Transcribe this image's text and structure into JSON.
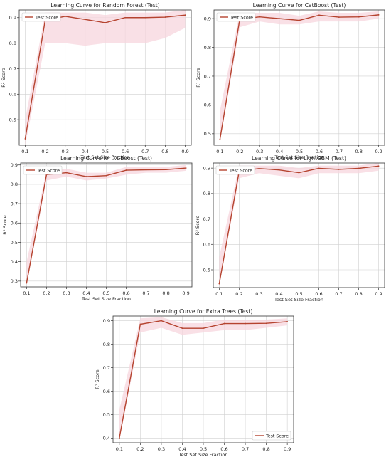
{
  "colors": {
    "line": "#b5432f",
    "band": "#f7d6de",
    "grid": "#d0d0d0",
    "axis": "#333333"
  },
  "chart_data": [
    {
      "type": "line",
      "title": "Learning Curve for Random Forest (Test)",
      "xlabel": "Test Set Size Fraction",
      "ylabel": "R² Score",
      "xlim": [
        0.07,
        0.93
      ],
      "ylim": [
        0.4,
        0.93
      ],
      "xticks": [
        "0.1",
        "0.2",
        "0.3",
        "0.4",
        "0.5",
        "0.6",
        "0.7",
        "0.8",
        "0.9"
      ],
      "yticks": [
        "0.5",
        "0.6",
        "0.7",
        "0.8",
        "0.9"
      ],
      "grid": true,
      "legend": "upper left",
      "series": [
        {
          "name": "Test Score",
          "x": [
            0.1,
            0.2,
            0.3,
            0.4,
            0.5,
            0.6,
            0.7,
            0.8,
            0.9
          ],
          "y": [
            0.425,
            0.89,
            0.905,
            0.893,
            0.88,
            0.9,
            0.9,
            0.902,
            0.91
          ],
          "lower": [
            0.4,
            0.8,
            0.8,
            0.79,
            0.8,
            0.8,
            0.8,
            0.82,
            0.86
          ],
          "upper": [
            0.5,
            0.92,
            0.92,
            0.92,
            0.91,
            0.92,
            0.92,
            0.92,
            0.93
          ]
        }
      ]
    },
    {
      "type": "line",
      "title": "Learning Curve for CatBoost (Test)",
      "xlabel": "Test Set Size Fraction",
      "ylabel": "R² Score",
      "xlim": [
        0.07,
        0.93
      ],
      "ylim": [
        0.46,
        0.93
      ],
      "xticks": [
        "0.1",
        "0.2",
        "0.3",
        "0.4",
        "0.5",
        "0.6",
        "0.7",
        "0.8",
        "0.9"
      ],
      "yticks": [
        "0.5",
        "0.6",
        "0.7",
        "0.8",
        "0.9"
      ],
      "grid": true,
      "legend": "upper left",
      "series": [
        {
          "name": "Test Score",
          "x": [
            0.1,
            0.2,
            0.3,
            0.4,
            0.5,
            0.6,
            0.7,
            0.8,
            0.9
          ],
          "y": [
            0.48,
            0.898,
            0.906,
            0.9,
            0.894,
            0.912,
            0.905,
            0.906,
            0.913
          ],
          "lower": [
            0.47,
            0.87,
            0.89,
            0.88,
            0.88,
            0.89,
            0.89,
            0.89,
            0.9
          ],
          "upper": [
            0.58,
            0.92,
            0.92,
            0.92,
            0.91,
            0.925,
            0.92,
            0.92,
            0.925
          ]
        }
      ]
    },
    {
      "type": "line",
      "title": "Learning Curve for XGBoost (Test)",
      "xlabel": "Test Set Size Fraction",
      "ylabel": "R² Score",
      "xlim": [
        0.07,
        0.93
      ],
      "ylim": [
        0.27,
        0.91
      ],
      "xticks": [
        "0.1",
        "0.2",
        "0.3",
        "0.4",
        "0.5",
        "0.6",
        "0.7",
        "0.8",
        "0.9"
      ],
      "yticks": [
        "0.3",
        "0.4",
        "0.5",
        "0.6",
        "0.7",
        "0.8",
        "0.9"
      ],
      "grid": true,
      "legend": "upper left",
      "series": [
        {
          "name": "Test Score",
          "x": [
            0.1,
            0.2,
            0.3,
            0.4,
            0.5,
            0.6,
            0.7,
            0.8,
            0.9
          ],
          "y": [
            0.29,
            0.85,
            0.86,
            0.84,
            0.845,
            0.873,
            0.875,
            0.876,
            0.884
          ],
          "lower": [
            0.28,
            0.82,
            0.84,
            0.82,
            0.83,
            0.85,
            0.86,
            0.86,
            0.87
          ],
          "upper": [
            0.4,
            0.87,
            0.88,
            0.86,
            0.86,
            0.89,
            0.89,
            0.89,
            0.9
          ]
        }
      ]
    },
    {
      "type": "line",
      "title": "Learning Curve for LightGBM (Test)",
      "xlabel": "Test Set Size Fraction",
      "ylabel": "R² Score",
      "xlim": [
        0.07,
        0.93
      ],
      "ylim": [
        0.43,
        0.92
      ],
      "xticks": [
        "0.1",
        "0.2",
        "0.3",
        "0.4",
        "0.5",
        "0.6",
        "0.7",
        "0.8",
        "0.9"
      ],
      "yticks": [
        "0.5",
        "0.6",
        "0.7",
        "0.8",
        "0.9"
      ],
      "grid": true,
      "legend": "upper left",
      "series": [
        {
          "name": "Test Score",
          "x": [
            0.1,
            0.2,
            0.3,
            0.4,
            0.5,
            0.6,
            0.7,
            0.8,
            0.9
          ],
          "y": [
            0.445,
            0.888,
            0.898,
            0.893,
            0.882,
            0.899,
            0.895,
            0.899,
            0.908
          ],
          "lower": [
            0.44,
            0.86,
            0.88,
            0.87,
            0.86,
            0.88,
            0.88,
            0.88,
            0.89
          ],
          "upper": [
            0.55,
            0.91,
            0.91,
            0.91,
            0.9,
            0.91,
            0.91,
            0.91,
            0.92
          ]
        }
      ]
    },
    {
      "type": "line",
      "title": "Learning Curve for Extra Trees (Test)",
      "xlabel": "Test Set Size Fraction",
      "ylabel": "R² Score",
      "xlim": [
        0.07,
        0.93
      ],
      "ylim": [
        0.38,
        0.92
      ],
      "xticks": [
        "0.1",
        "0.2",
        "0.3",
        "0.4",
        "0.5",
        "0.6",
        "0.7",
        "0.8",
        "0.9"
      ],
      "yticks": [
        "0.4",
        "0.5",
        "0.6",
        "0.7",
        "0.8",
        "0.9"
      ],
      "grid": true,
      "legend": "lower right",
      "series": [
        {
          "name": "Test Score",
          "x": [
            0.1,
            0.2,
            0.3,
            0.4,
            0.5,
            0.6,
            0.7,
            0.8,
            0.9
          ],
          "y": [
            0.4,
            0.885,
            0.9,
            0.868,
            0.868,
            0.888,
            0.888,
            0.889,
            0.896
          ],
          "lower": [
            0.39,
            0.85,
            0.87,
            0.84,
            0.85,
            0.86,
            0.86,
            0.87,
            0.88
          ],
          "upper": [
            0.52,
            0.91,
            0.915,
            0.89,
            0.89,
            0.905,
            0.905,
            0.905,
            0.91
          ]
        }
      ]
    }
  ]
}
